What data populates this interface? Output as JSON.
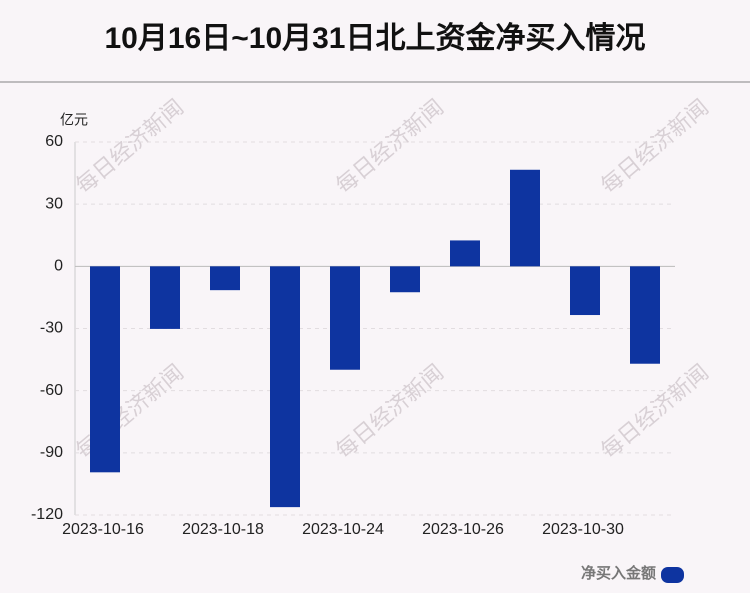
{
  "chart_data": {
    "type": "bar",
    "title": "10月16日~10月31日北上资金净买入情况",
    "y_unit": "亿元",
    "watermark": "每日经济新闻",
    "categories": [
      "2023-10-16",
      null,
      "2023-10-18",
      null,
      "2023-10-24",
      null,
      "2023-10-26",
      null,
      "2023-10-30",
      null
    ],
    "series": [
      {
        "name": "净买入金额",
        "color": "#0e34a0",
        "values": [
          -99.4,
          -30.2,
          -11.5,
          -116.2,
          -49.9,
          -12.5,
          12.5,
          46.6,
          -23.5,
          -47.0
        ]
      }
    ],
    "ylim": [
      -120,
      60
    ],
    "yticks": [
      -120,
      -90,
      -60,
      -30,
      0,
      30,
      60
    ],
    "grid": true
  }
}
